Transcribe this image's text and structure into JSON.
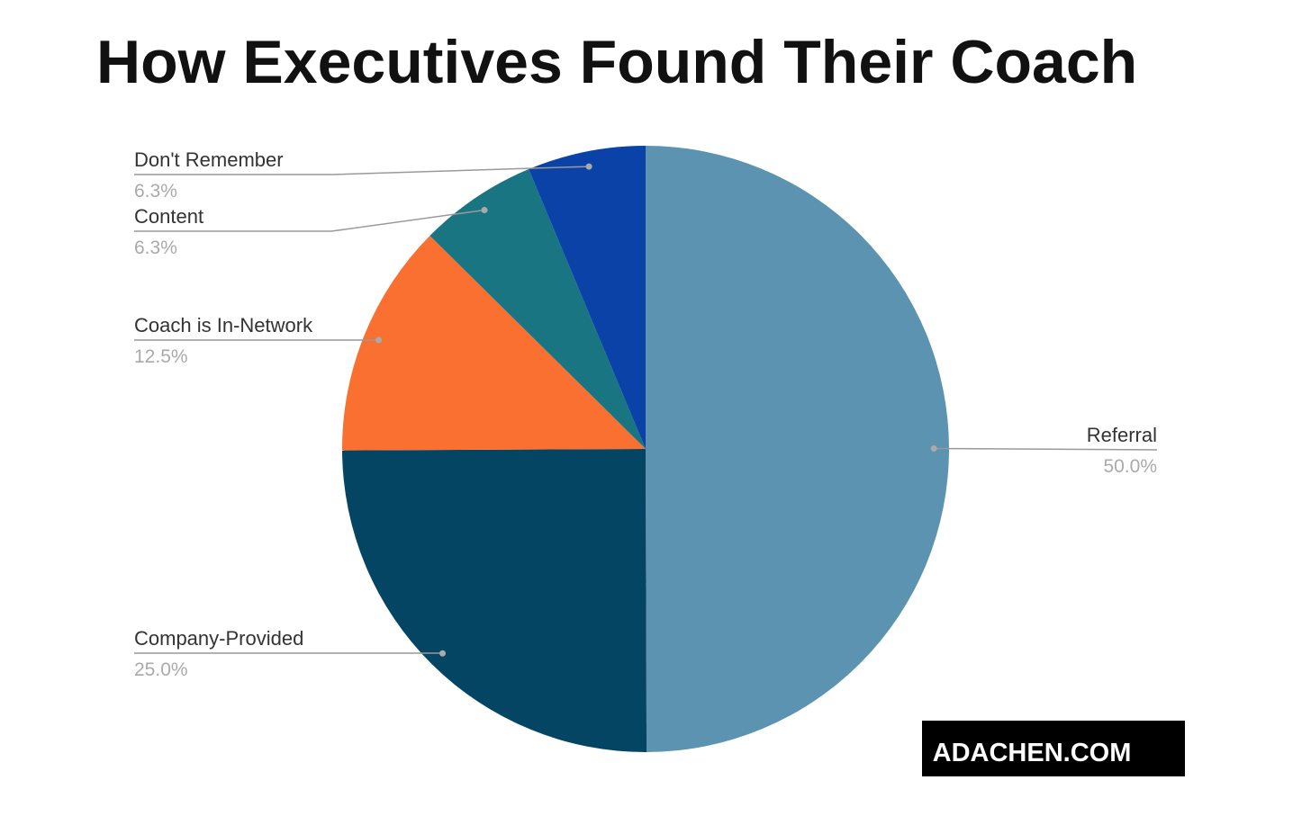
{
  "chart_data": {
    "type": "pie",
    "title": "How Executives Found Their Coach",
    "categories": [
      "Referral",
      "Company-Provided",
      "Coach is In-Network",
      "Content",
      "Don't Remember"
    ],
    "values": [
      50,
      25,
      12.5,
      6.3,
      6.3
    ],
    "value_labels": [
      "50.0%",
      "25.0%",
      "12.5%",
      "6.3%",
      "6.3%"
    ],
    "colors": [
      "#5b93b0",
      "#034563",
      "#f97030",
      "#1a7583",
      "#0a42a8"
    ],
    "watermark": "ADACHEN.COM"
  }
}
